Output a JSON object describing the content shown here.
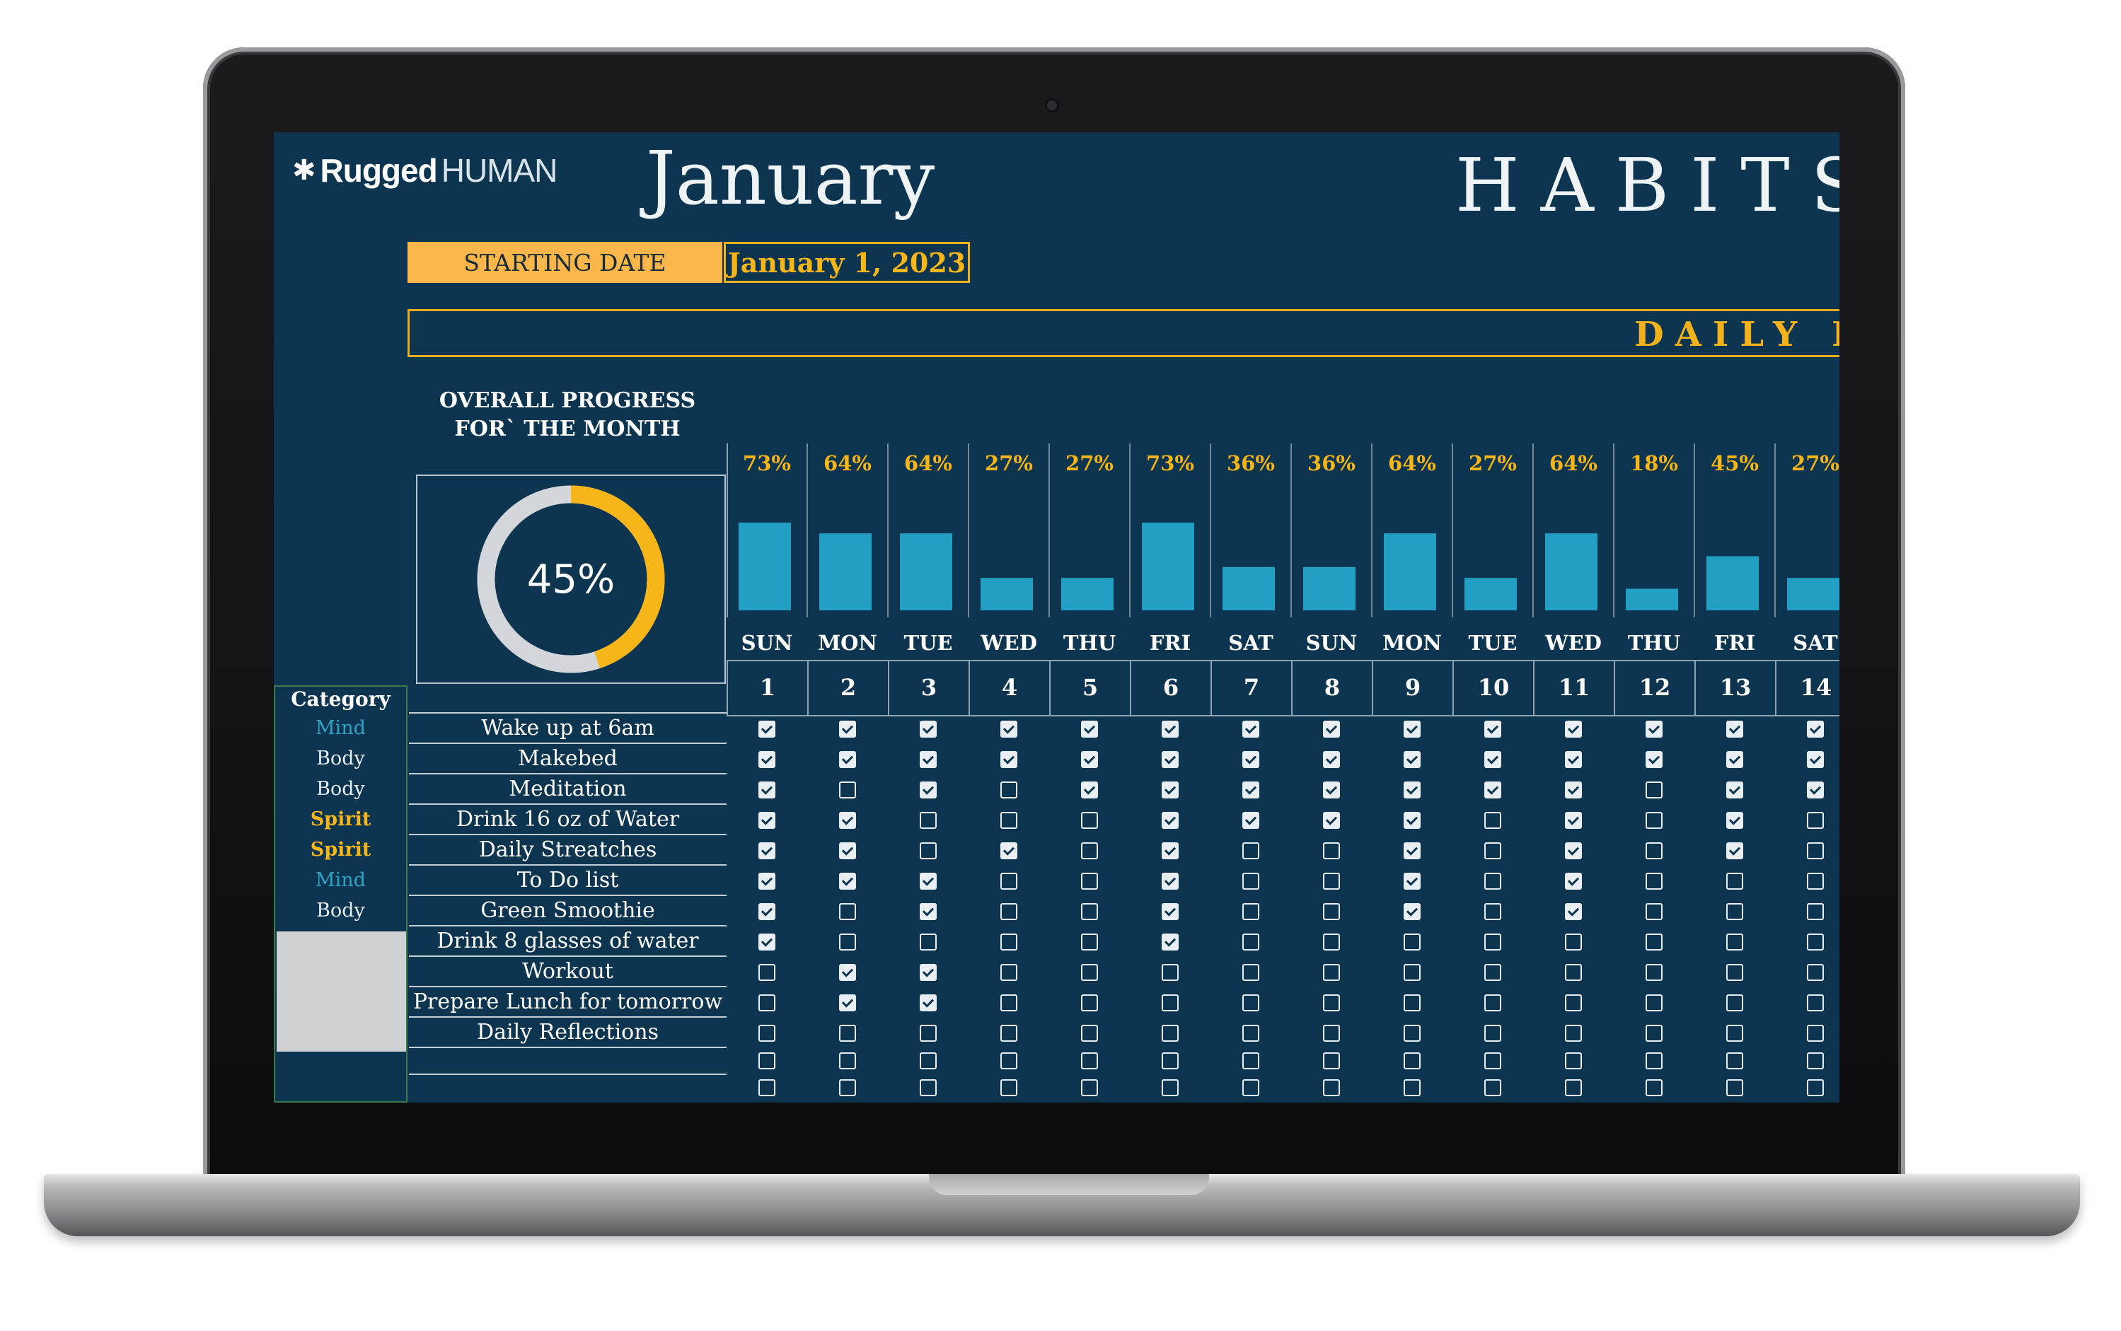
{
  "brand": {
    "mark": "✱",
    "bold": "Rugged",
    "light": "HUMAN"
  },
  "month": "January",
  "page_title": "HABITS",
  "starting_date": {
    "label": "STARTING DATE",
    "value": "January 1, 2023"
  },
  "banner_title": "DAILY H",
  "overall": {
    "title": "OVERALL PROGRESS FOR` THE MONTH",
    "value_label": "45%",
    "value": 0.45
  },
  "colors": {
    "background": "#0e3550",
    "accent": "#f6b61a",
    "bar": "#249fc4",
    "mind": "#2aa4c8",
    "spirit": "#f6b61a",
    "body": "#e6edf2"
  },
  "days": [
    {
      "name": "SUN",
      "num": "1",
      "pct_label": "73%",
      "pct": 73
    },
    {
      "name": "MON",
      "num": "2",
      "pct_label": "64%",
      "pct": 64
    },
    {
      "name": "TUE",
      "num": "3",
      "pct_label": "64%",
      "pct": 64
    },
    {
      "name": "WED",
      "num": "4",
      "pct_label": "27%",
      "pct": 27
    },
    {
      "name": "THU",
      "num": "5",
      "pct_label": "27%",
      "pct": 27
    },
    {
      "name": "FRI",
      "num": "6",
      "pct_label": "73%",
      "pct": 73
    },
    {
      "name": "SAT",
      "num": "7",
      "pct_label": "36%",
      "pct": 36
    },
    {
      "name": "SUN",
      "num": "8",
      "pct_label": "36%",
      "pct": 36
    },
    {
      "name": "MON",
      "num": "9",
      "pct_label": "64%",
      "pct": 64
    },
    {
      "name": "TUE",
      "num": "10",
      "pct_label": "27%",
      "pct": 27
    },
    {
      "name": "WED",
      "num": "11",
      "pct_label": "64%",
      "pct": 64
    },
    {
      "name": "THU",
      "num": "12",
      "pct_label": "18%",
      "pct": 18
    },
    {
      "name": "FRI",
      "num": "13",
      "pct_label": "45%",
      "pct": 45
    },
    {
      "name": "SAT",
      "num": "14",
      "pct_label": "27%",
      "pct": 27
    }
  ],
  "category_header": "Category",
  "categories": [
    "Mind",
    "Body",
    "Body",
    "Spirit",
    "Spirit",
    "Mind",
    "Body"
  ],
  "habits": [
    "Wake up at 6am",
    "Makebed",
    "Meditation",
    "Drink 16 oz of Water",
    "Daily Streatches",
    "To Do list",
    "Green Smoothie",
    "Drink 8 glasses of water",
    "Workout",
    "Prepare Lunch for tomorrow",
    "Daily Reflections",
    "",
    ""
  ],
  "checks": [
    [
      1,
      1,
      1,
      1,
      1,
      1,
      1,
      1,
      1,
      1,
      1,
      1,
      1,
      1
    ],
    [
      1,
      1,
      1,
      1,
      1,
      1,
      1,
      1,
      1,
      1,
      1,
      1,
      1,
      1
    ],
    [
      1,
      0,
      1,
      0,
      1,
      1,
      1,
      1,
      1,
      1,
      1,
      0,
      1,
      1
    ],
    [
      1,
      1,
      0,
      0,
      0,
      1,
      1,
      1,
      1,
      0,
      1,
      0,
      1,
      0
    ],
    [
      1,
      1,
      0,
      1,
      0,
      1,
      0,
      0,
      1,
      0,
      1,
      0,
      1,
      0
    ],
    [
      1,
      1,
      1,
      0,
      0,
      1,
      0,
      0,
      1,
      0,
      1,
      0,
      0,
      0
    ],
    [
      1,
      0,
      1,
      0,
      0,
      1,
      0,
      0,
      1,
      0,
      1,
      0,
      0,
      0
    ],
    [
      1,
      0,
      0,
      0,
      0,
      1,
      0,
      0,
      0,
      0,
      0,
      0,
      0,
      0
    ],
    [
      0,
      1,
      1,
      0,
      0,
      0,
      0,
      0,
      0,
      0,
      0,
      0,
      0,
      0
    ],
    [
      0,
      1,
      1,
      0,
      0,
      0,
      0,
      0,
      0,
      0,
      0,
      0,
      0,
      0
    ],
    [
      0,
      0,
      0,
      0,
      0,
      0,
      0,
      0,
      0,
      0,
      0,
      0,
      0,
      0
    ],
    [
      0,
      0,
      0,
      0,
      0,
      0,
      0,
      0,
      0,
      0,
      0,
      0,
      0,
      0
    ],
    [
      0,
      0,
      0,
      0,
      0,
      0,
      0,
      0,
      0,
      0,
      0,
      0,
      0,
      0
    ]
  ]
}
